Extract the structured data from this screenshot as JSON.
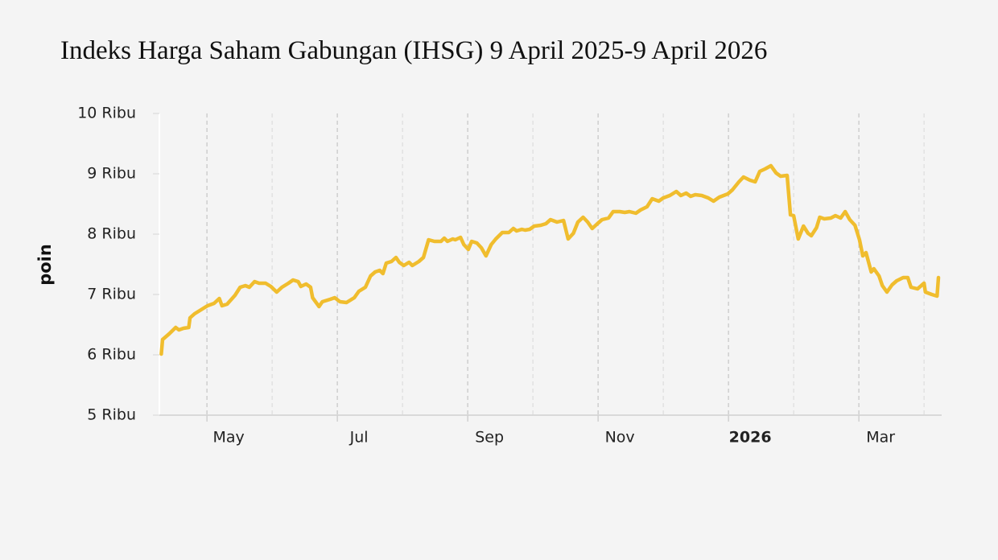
{
  "chart_data": {
    "type": "line",
    "title": "Indeks Harga Saham Gabungan (IHSG) 9 April 2025-9 April 2026",
    "y_label": "poin",
    "color": "#f0bd2e",
    "xgrid": true,
    "xlim": [
      3.27,
      15.27
    ],
    "xticks": [
      {
        "value": 4,
        "label": "May"
      },
      {
        "value": 6,
        "label": "Jul"
      },
      {
        "value": 8,
        "label": "Sep"
      },
      {
        "value": 10,
        "label": "Nov"
      },
      {
        "value": 12,
        "label": "2026"
      },
      {
        "value": 14,
        "label": "Mar"
      }
    ],
    "ylim": [
      5000,
      10000
    ],
    "yticks": [
      {
        "value": 5000,
        "label": "5 Ribu"
      },
      {
        "value": 6000,
        "label": "6 Ribu"
      },
      {
        "value": 7000,
        "label": "7 Ribu"
      },
      {
        "value": 8000,
        "label": "8 Ribu"
      },
      {
        "value": 9000,
        "label": "9 Ribu"
      },
      {
        "value": 10000,
        "label": "10 Ribu"
      }
    ],
    "x": [
      3.3,
      3.32,
      3.42,
      3.52,
      3.57,
      3.64,
      3.72,
      3.74,
      3.81,
      3.91,
      4.01,
      4.11,
      4.19,
      4.23,
      4.31,
      4.43,
      4.51,
      4.59,
      4.65,
      4.73,
      4.8,
      4.9,
      4.98,
      5.07,
      5.15,
      5.25,
      5.32,
      5.4,
      5.44,
      5.52,
      5.59,
      5.62,
      5.72,
      5.77,
      5.89,
      5.96,
      6.04,
      6.14,
      6.26,
      6.33,
      6.43,
      6.51,
      6.58,
      6.65,
      6.7,
      6.75,
      6.83,
      6.9,
      6.95,
      7.02,
      7.1,
      7.15,
      7.25,
      7.32,
      7.4,
      7.49,
      7.59,
      7.64,
      7.69,
      7.77,
      7.81,
      7.89,
      7.94,
      8.01,
      8.06,
      8.14,
      8.21,
      8.28,
      8.36,
      8.43,
      8.53,
      8.63,
      8.7,
      8.75,
      8.83,
      8.88,
      8.95,
      9.02,
      9.12,
      9.2,
      9.27,
      9.37,
      9.47,
      9.54,
      9.62,
      9.69,
      9.77,
      9.84,
      9.91,
      9.99,
      10.06,
      10.16,
      10.23,
      10.33,
      10.41,
      10.48,
      10.58,
      10.65,
      10.75,
      10.83,
      10.93,
      11.0,
      11.1,
      11.2,
      11.27,
      11.35,
      11.42,
      11.49,
      11.59,
      11.69,
      11.77,
      11.86,
      11.99,
      12.06,
      12.16,
      12.23,
      12.33,
      12.41,
      12.48,
      12.56,
      12.65,
      12.73,
      12.8,
      12.9,
      12.95,
      13.0,
      13.07,
      13.15,
      13.22,
      13.27,
      13.35,
      13.4,
      13.47,
      13.57,
      13.64,
      13.72,
      13.79,
      13.86,
      13.94,
      14.01,
      14.06,
      14.11,
      14.19,
      14.23,
      14.31,
      14.36,
      14.43,
      14.51,
      14.58,
      14.68,
      14.75,
      14.8,
      14.9,
      15.0,
      15.02,
      15.12,
      15.2,
      15.22
    ],
    "values": [
      6013,
      6253,
      6347,
      6453,
      6413,
      6440,
      6453,
      6613,
      6680,
      6747,
      6813,
      6853,
      6933,
      6813,
      6840,
      6987,
      7120,
      7147,
      7120,
      7213,
      7187,
      7187,
      7133,
      7040,
      7120,
      7187,
      7240,
      7213,
      7133,
      7173,
      7120,
      6947,
      6800,
      6880,
      6920,
      6947,
      6880,
      6867,
      6947,
      7053,
      7120,
      7307,
      7373,
      7400,
      7347,
      7520,
      7547,
      7613,
      7533,
      7480,
      7533,
      7480,
      7547,
      7613,
      7907,
      7880,
      7880,
      7933,
      7880,
      7920,
      7907,
      7947,
      7827,
      7747,
      7880,
      7853,
      7773,
      7640,
      7827,
      7920,
      8027,
      8027,
      8093,
      8053,
      8080,
      8067,
      8080,
      8133,
      8147,
      8173,
      8240,
      8200,
      8227,
      7920,
      8013,
      8200,
      8280,
      8200,
      8093,
      8173,
      8240,
      8267,
      8373,
      8373,
      8360,
      8373,
      8347,
      8400,
      8453,
      8587,
      8547,
      8600,
      8640,
      8707,
      8640,
      8680,
      8627,
      8653,
      8640,
      8600,
      8547,
      8613,
      8667,
      8733,
      8867,
      8947,
      8893,
      8867,
      9040,
      9080,
      9133,
      9013,
      8960,
      8973,
      8320,
      8307,
      7920,
      8133,
      8013,
      7973,
      8107,
      8280,
      8253,
      8267,
      8307,
      8267,
      8373,
      8240,
      8147,
      7907,
      7640,
      7693,
      7373,
      7427,
      7307,
      7147,
      7040,
      7160,
      7227,
      7280,
      7280,
      7120,
      7093,
      7187,
      7040,
      7000,
      6973,
      7280
    ]
  }
}
